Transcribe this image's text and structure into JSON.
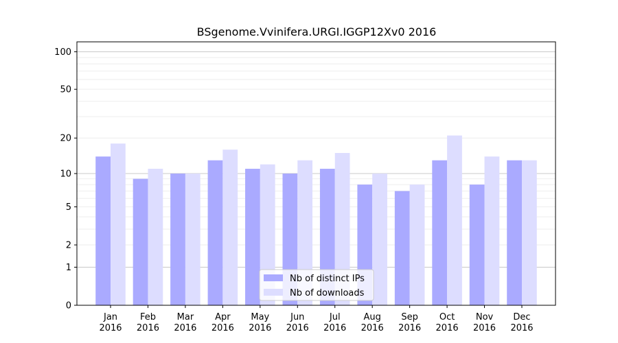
{
  "chart_data": {
    "type": "bar",
    "title": "BSgenome.Vvinifera.URGI.IGGP12Xv0 2016",
    "xlabel": "",
    "ylabel": "",
    "scale": "log1p",
    "ylim": [
      0,
      120
    ],
    "yticks": [
      0,
      1,
      2,
      5,
      10,
      20,
      50,
      100
    ],
    "grid": true,
    "legend_position": "lower-center",
    "categories": [
      [
        "Jan",
        "2016"
      ],
      [
        "Feb",
        "2016"
      ],
      [
        "Mar",
        "2016"
      ],
      [
        "Apr",
        "2016"
      ],
      [
        "May",
        "2016"
      ],
      [
        "Jun",
        "2016"
      ],
      [
        "Jul",
        "2016"
      ],
      [
        "Aug",
        "2016"
      ],
      [
        "Sep",
        "2016"
      ],
      [
        "Oct",
        "2016"
      ],
      [
        "Nov",
        "2016"
      ],
      [
        "Dec",
        "2016"
      ]
    ],
    "series": [
      {
        "name": "Nb of distinct IPs",
        "color": "#aaaaff",
        "values": [
          14,
          9,
          10,
          13,
          11,
          10,
          11,
          8,
          7,
          13,
          8,
          13
        ]
      },
      {
        "name": "Nb of downloads",
        "color": "#ddddff",
        "values": [
          18,
          11,
          10,
          16,
          12,
          13,
          15,
          10,
          8,
          21,
          14,
          13
        ]
      }
    ]
  }
}
